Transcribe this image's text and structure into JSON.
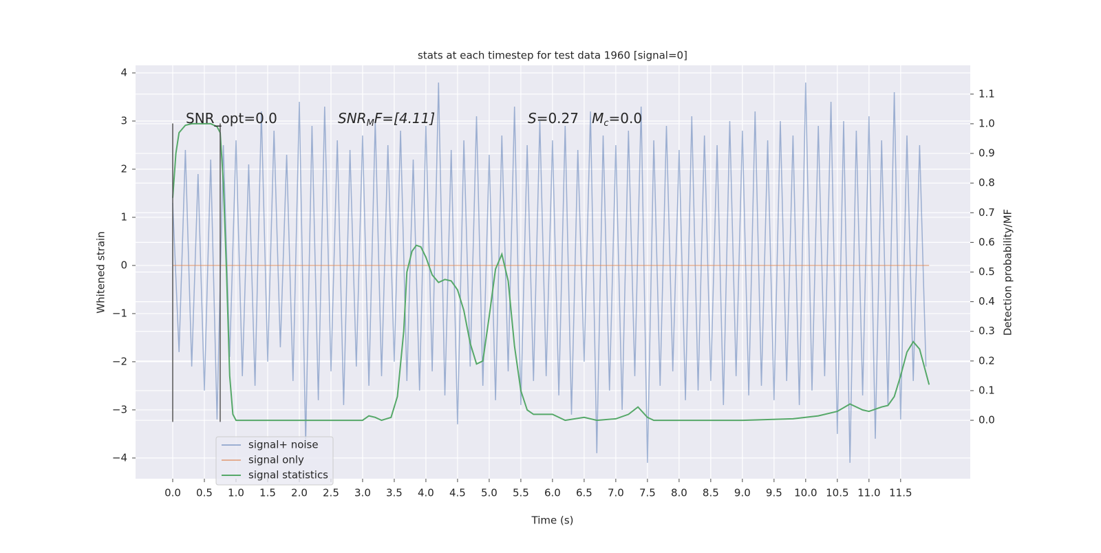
{
  "chart_data": {
    "type": "line",
    "title": "stats at each timestep for test data 1960 [signal=0]",
    "xlabel": "Time (s)",
    "ylabel": "Whitened strain",
    "y2label": "Detection probability/MF",
    "xlim": [
      -0.587,
      12.6
    ],
    "ylim": [
      -4.43,
      4.157
    ],
    "y2lim": [
      -0.197,
      1.197
    ],
    "xticks": [
      {
        "value": 0,
        "label": "0.0"
      },
      {
        "value": 0.5,
        "label": "0.5"
      },
      {
        "value": 1,
        "label": "1.0"
      },
      {
        "value": 1.5,
        "label": "1.5"
      },
      {
        "value": 2,
        "label": "2.0"
      },
      {
        "value": 2.5,
        "label": "2.5"
      },
      {
        "value": 3,
        "label": "3.0"
      },
      {
        "value": 3.5,
        "label": "3.5"
      },
      {
        "value": 4,
        "label": "4.0"
      },
      {
        "value": 4.5,
        "label": "4.5"
      },
      {
        "value": 5,
        "label": "5.0"
      },
      {
        "value": 5.5,
        "label": "5.5"
      },
      {
        "value": 6,
        "label": "6.0"
      },
      {
        "value": 6.5,
        "label": "6.5"
      },
      {
        "value": 7,
        "label": "7.0"
      },
      {
        "value": 7.5,
        "label": "7.5"
      },
      {
        "value": 8,
        "label": "8.0"
      },
      {
        "value": 8.5,
        "label": "8.5"
      },
      {
        "value": 9,
        "label": "9.0"
      },
      {
        "value": 9.5,
        "label": "9.5"
      },
      {
        "value": 10,
        "label": "10.0"
      },
      {
        "value": 10.5,
        "label": "10.5"
      },
      {
        "value": 11,
        "label": "11.0"
      },
      {
        "value": 11.5,
        "label": "11.5"
      }
    ],
    "yticks": [
      {
        "value": -4,
        "label": "−4"
      },
      {
        "value": -3,
        "label": "−3"
      },
      {
        "value": -2,
        "label": "−2"
      },
      {
        "value": -1,
        "label": "−1"
      },
      0,
      1,
      2,
      3,
      4
    ],
    "y2ticks": [
      {
        "value": 0,
        "label": "0.0"
      },
      {
        "value": 0.1,
        "label": "0.1"
      },
      {
        "value": 0.2,
        "label": "0.2"
      },
      {
        "value": 0.3,
        "label": "0.3"
      },
      {
        "value": 0.4,
        "label": "0.4"
      },
      {
        "value": 0.5,
        "label": "0.5"
      },
      {
        "value": 0.6,
        "label": "0.6"
      },
      {
        "value": 0.7,
        "label": "0.7"
      },
      {
        "value": 0.8,
        "label": "0.8"
      },
      {
        "value": 0.9,
        "label": "0.9"
      },
      {
        "value": 1,
        "label": "1.0"
      },
      {
        "value": 1.1,
        "label": "1.1"
      }
    ],
    "grid": true,
    "legend": "lower left",
    "vlines": [
      0,
      0.75
    ],
    "vline_range": [
      -3.25,
      2.95
    ],
    "vline_color": "#555555",
    "annotations": [
      [
        {
          "text": "SNR_opt=0.0"
        }
      ],
      [
        {
          "text": "SNR",
          "italic": true
        },
        {
          "text": "M",
          "italic": true,
          "sub": true
        },
        {
          "text": "F=[4.11]",
          "italic": true
        }
      ],
      [
        {
          "text": "S",
          "italic": true
        },
        {
          "text": "=0.27   "
        },
        {
          "text": "M",
          "italic": true
        },
        {
          "text": "c",
          "italic": true,
          "sub": true
        },
        {
          "text": "=0.0"
        }
      ]
    ],
    "series": [
      {
        "name": "signal+ noise",
        "color": "#4c72b0",
        "opacity": 0.5,
        "x": [
          0.0,
          0.1,
          0.2,
          0.3,
          0.4,
          0.5,
          0.6,
          0.7,
          0.8,
          0.9,
          1.0,
          1.1,
          1.2,
          1.3,
          1.4,
          1.5,
          1.6,
          1.7,
          1.8,
          1.9,
          2.0,
          2.1,
          2.2,
          2.3,
          2.4,
          2.5,
          2.6,
          2.7,
          2.8,
          2.9,
          3.0,
          3.1,
          3.2,
          3.3,
          3.4,
          3.5,
          3.6,
          3.7,
          3.8,
          3.9,
          4.0,
          4.1,
          4.2,
          4.3,
          4.4,
          4.5,
          4.6,
          4.7,
          4.8,
          4.9,
          5.0,
          5.1,
          5.2,
          5.3,
          5.4,
          5.5,
          5.6,
          5.7,
          5.8,
          5.9,
          6.0,
          6.1,
          6.2,
          6.3,
          6.4,
          6.5,
          6.6,
          6.7,
          6.8,
          6.9,
          7.0,
          7.1,
          7.2,
          7.3,
          7.4,
          7.5,
          7.6,
          7.7,
          7.8,
          7.9,
          8.0,
          8.1,
          8.2,
          8.3,
          8.4,
          8.5,
          8.6,
          8.7,
          8.8,
          8.9,
          9.0,
          9.1,
          9.2,
          9.3,
          9.4,
          9.5,
          9.6,
          9.7,
          9.8,
          9.9,
          10.0,
          10.1,
          10.2,
          10.3,
          10.4,
          10.5,
          10.6,
          10.7,
          10.8,
          10.9,
          11.0,
          11.1,
          11.2,
          11.3,
          11.4,
          11.5,
          11.6,
          11.7,
          11.8,
          11.9
        ],
        "values": [
          1.3,
          -1.8,
          2.4,
          -2.1,
          1.9,
          -2.6,
          2.2,
          -3.2,
          2.5,
          -1.9,
          2.6,
          -2.3,
          2.1,
          -2.5,
          3.2,
          -2.0,
          2.8,
          -1.7,
          2.3,
          -2.4,
          3.4,
          -3.7,
          2.9,
          -2.8,
          3.3,
          -2.2,
          2.6,
          -2.9,
          2.4,
          -2.1,
          2.7,
          -2.5,
          3.0,
          -2.3,
          2.5,
          -2.0,
          2.8,
          -2.4,
          2.2,
          -2.6,
          2.9,
          -2.2,
          3.8,
          -2.7,
          2.4,
          -3.3,
          2.6,
          -2.1,
          3.1,
          -2.5,
          2.3,
          -2.8,
          2.7,
          -2.2,
          3.3,
          -2.9,
          2.5,
          -2.4,
          3.0,
          -2.3,
          2.6,
          -2.7,
          2.9,
          -3.1,
          2.4,
          -2.0,
          3.2,
          -3.9,
          2.7,
          -2.6,
          2.5,
          -3.0,
          2.8,
          -2.3,
          3.3,
          -4.1,
          2.6,
          -2.5,
          2.9,
          -2.2,
          2.4,
          -2.8,
          3.1,
          -2.6,
          2.7,
          -2.4,
          2.5,
          -2.9,
          3.0,
          -2.3,
          2.8,
          -2.7,
          3.2,
          -2.5,
          2.6,
          -2.8,
          3.0,
          -2.4,
          2.7,
          -2.9,
          3.8,
          -2.6,
          2.9,
          -2.3,
          3.4,
          -3.5,
          3.0,
          -4.1,
          2.8,
          -2.7,
          3.1,
          -3.6,
          2.6,
          -2.9,
          3.6,
          -3.2,
          2.7,
          -2.4,
          2.5,
          -2.1
        ]
      },
      {
        "name": "signal only",
        "color": "#dd8452",
        "opacity": 0.6,
        "x": [
          0,
          11.95
        ],
        "values": [
          0,
          0
        ]
      },
      {
        "name": "signal statistics",
        "color": "#55a868",
        "axis": "y2",
        "x": [
          0.0,
          0.05,
          0.1,
          0.2,
          0.3,
          0.5,
          0.6,
          0.7,
          0.75,
          0.8,
          0.85,
          0.9,
          0.95,
          1.0,
          1.5,
          2.0,
          2.5,
          3.0,
          3.1,
          3.2,
          3.3,
          3.45,
          3.55,
          3.65,
          3.7,
          3.78,
          3.85,
          3.92,
          4.0,
          4.1,
          4.2,
          4.3,
          4.4,
          4.5,
          4.6,
          4.7,
          4.8,
          4.9,
          5.0,
          5.1,
          5.2,
          5.3,
          5.4,
          5.5,
          5.6,
          5.7,
          6.0,
          6.2,
          6.5,
          6.7,
          7.0,
          7.2,
          7.35,
          7.5,
          7.6,
          8.0,
          9.0,
          9.8,
          10.2,
          10.5,
          10.7,
          10.9,
          11.0,
          11.2,
          11.3,
          11.4,
          11.5,
          11.6,
          11.7,
          11.8,
          11.95
        ],
        "values": [
          0.75,
          0.9,
          0.97,
          0.995,
          1.0,
          1.0,
          1.0,
          0.99,
          0.97,
          0.8,
          0.5,
          0.15,
          0.02,
          0.0,
          0.0,
          0.0,
          0.0,
          0.0,
          0.015,
          0.01,
          0.0,
          0.01,
          0.08,
          0.3,
          0.5,
          0.57,
          0.59,
          0.585,
          0.55,
          0.49,
          0.465,
          0.475,
          0.47,
          0.44,
          0.37,
          0.26,
          0.19,
          0.2,
          0.35,
          0.51,
          0.56,
          0.47,
          0.25,
          0.1,
          0.035,
          0.02,
          0.02,
          0.0,
          0.01,
          0.0,
          0.005,
          0.02,
          0.045,
          0.01,
          0.0,
          0.0,
          0.0,
          0.005,
          0.015,
          0.03,
          0.055,
          0.035,
          0.03,
          0.045,
          0.05,
          0.08,
          0.15,
          0.23,
          0.265,
          0.24,
          0.12
        ]
      }
    ]
  }
}
